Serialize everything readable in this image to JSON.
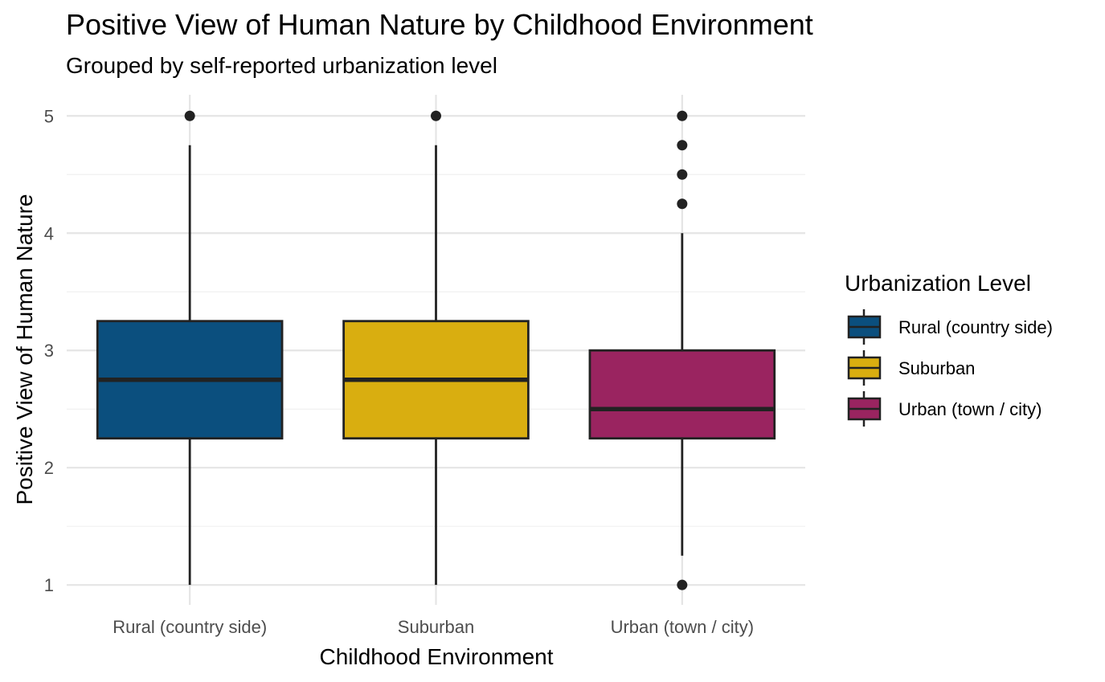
{
  "chart_data": {
    "type": "boxplot",
    "title": "Positive View of Human Nature by Childhood Environment",
    "subtitle": "Grouped by self-reported urbanization level",
    "xlabel": "Childhood Environment",
    "ylabel": "Positive View of Human Nature",
    "ylim": [
      0.83,
      5.18
    ],
    "yticks": [
      1,
      2,
      3,
      4,
      5
    ],
    "grid": true,
    "legend": {
      "title": "Urbanization Level",
      "position": "right"
    },
    "categories": [
      "Rural (country side)",
      "Suburban",
      "Urban (town / city)"
    ],
    "series": [
      {
        "name": "Rural (country side)",
        "color": "#0b4f7e",
        "whisker_low": 1,
        "q1": 2.25,
        "median": 2.75,
        "q3": 3.25,
        "whisker_high": 4.75,
        "outliers": [
          5
        ]
      },
      {
        "name": "Suburban",
        "color": "#d9ae10",
        "whisker_low": 1,
        "q1": 2.25,
        "median": 2.75,
        "q3": 3.25,
        "whisker_high": 4.75,
        "outliers": [
          5
        ]
      },
      {
        "name": "Urban (town / city)",
        "color": "#9a2460",
        "whisker_low": 1.25,
        "q1": 2.25,
        "median": 2.5,
        "q3": 3,
        "whisker_high": 4,
        "outliers": [
          1,
          4.25,
          4.5,
          4.75,
          5
        ]
      }
    ]
  }
}
